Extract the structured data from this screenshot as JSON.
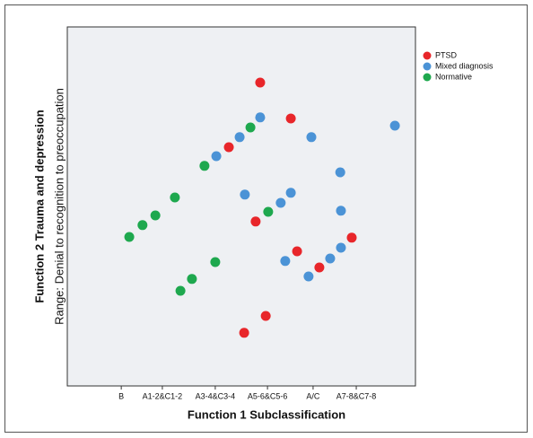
{
  "chart_data": {
    "type": "scatter",
    "x_label": "Function 1 Subclassification",
    "y_label": "Function 2 Trauma and depression",
    "y_sublabel": "Range: Denial to recognition to preoccupation",
    "xlim": [
      0,
      100
    ],
    "ylim": [
      0,
      100
    ],
    "xticks": [
      {
        "value": 15.5,
        "label": "B"
      },
      {
        "value": 27.3,
        "label": "A1-2&C1-2"
      },
      {
        "value": 42.5,
        "label": "A3-4&C3-4"
      },
      {
        "value": 57.5,
        "label": "A5-6&C5-6"
      },
      {
        "value": 70.6,
        "label": "A/C"
      },
      {
        "value": 83,
        "label": "A7-8&C7-8"
      }
    ],
    "legend": "top-right",
    "series": [
      {
        "name": "PTSD",
        "color": "#e8262a",
        "x": [
          55.4,
          64.2,
          46.4,
          54.1,
          66.0,
          81.7,
          72.4,
          57.0,
          50.8
        ],
        "values": [
          84.5,
          74.5,
          66.5,
          45.8,
          37.5,
          41.3,
          33.0,
          19.5,
          14.8
        ]
      },
      {
        "name": "Mixed diagnosis",
        "color": "#4b93d6",
        "x": [
          55.4,
          49.5,
          42.8,
          70.1,
          94.1,
          78.4,
          51.0,
          64.2,
          61.3,
          78.6,
          78.6,
          75.5,
          62.6,
          69.3
        ],
        "values": [
          74.8,
          69.3,
          64.0,
          69.3,
          72.5,
          59.5,
          53.3,
          53.8,
          51.0,
          48.8,
          38.5,
          35.5,
          34.8,
          30.5
        ]
      },
      {
        "name": "Normative",
        "color": "#1ea84e",
        "x": [
          52.6,
          39.4,
          30.9,
          25.3,
          21.6,
          17.8,
          57.7,
          42.5,
          35.8,
          32.5
        ],
        "values": [
          72.0,
          61.3,
          52.5,
          47.5,
          44.8,
          41.5,
          48.5,
          34.5,
          29.8,
          26.5
        ]
      }
    ]
  }
}
